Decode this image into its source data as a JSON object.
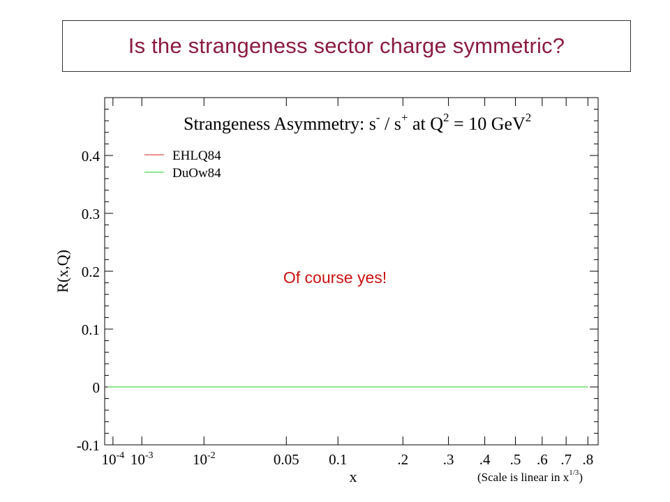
{
  "slide": {
    "title": "Is the strangeness sector charge symmetric?",
    "annotation": "Of course yes!",
    "annotation_color": "#cc1111",
    "title_color": "#8b1a3f"
  },
  "chart_data": {
    "type": "line",
    "title_parts": {
      "text1": "Strangeness Asymmetry: s",
      "sup1": "-",
      "text2": " / s",
      "sup2": "+",
      "text3": "  at Q",
      "sup3": "2",
      "text4": " = 10 GeV",
      "sup4": "2"
    },
    "ylabel": "R(x,Q)",
    "xlabel": "x",
    "x_note": {
      "text": "(Scale is linear in x",
      "sup": "1/3",
      "close": ")"
    },
    "ylim": [
      -0.1,
      0.5
    ],
    "xlim": [
      3e-05,
      0.85
    ],
    "x_scale": "cube-root",
    "y_ticks": [
      {
        "value": -0.1,
        "label": "-0.1"
      },
      {
        "value": 0,
        "label": "0"
      },
      {
        "value": 0.1,
        "label": "0.1"
      },
      {
        "value": 0.2,
        "label": "0.2"
      },
      {
        "value": 0.3,
        "label": "0.3"
      },
      {
        "value": 0.4,
        "label": "0.4"
      }
    ],
    "x_ticks": [
      {
        "value": 0.0001,
        "base": "10",
        "exp": "-4"
      },
      {
        "value": 0.001,
        "base": "10",
        "exp": "-3"
      },
      {
        "value": 0.01,
        "base": "10",
        "exp": "-2"
      },
      {
        "value": 0.05,
        "label": "0.05"
      },
      {
        "value": 0.1,
        "label": "0.1"
      },
      {
        "value": 0.2,
        "label": ".2"
      },
      {
        "value": 0.3,
        "label": ".3"
      },
      {
        "value": 0.4,
        "label": ".4"
      },
      {
        "value": 0.5,
        "label": ".5"
      },
      {
        "value": 0.6,
        "label": ".6"
      },
      {
        "value": 0.7,
        "label": ".7"
      },
      {
        "value": 0.8,
        "label": ".8"
      }
    ],
    "series": [
      {
        "name": "EHLQ84",
        "color": "#dd2222",
        "x": [
          5e-05,
          0.8
        ],
        "y": [
          0,
          0
        ]
      },
      {
        "name": "DuOw84",
        "color": "#22cc22",
        "x": [
          5e-05,
          0.8
        ],
        "y": [
          0,
          0
        ]
      }
    ],
    "legend_position": "top-left"
  }
}
